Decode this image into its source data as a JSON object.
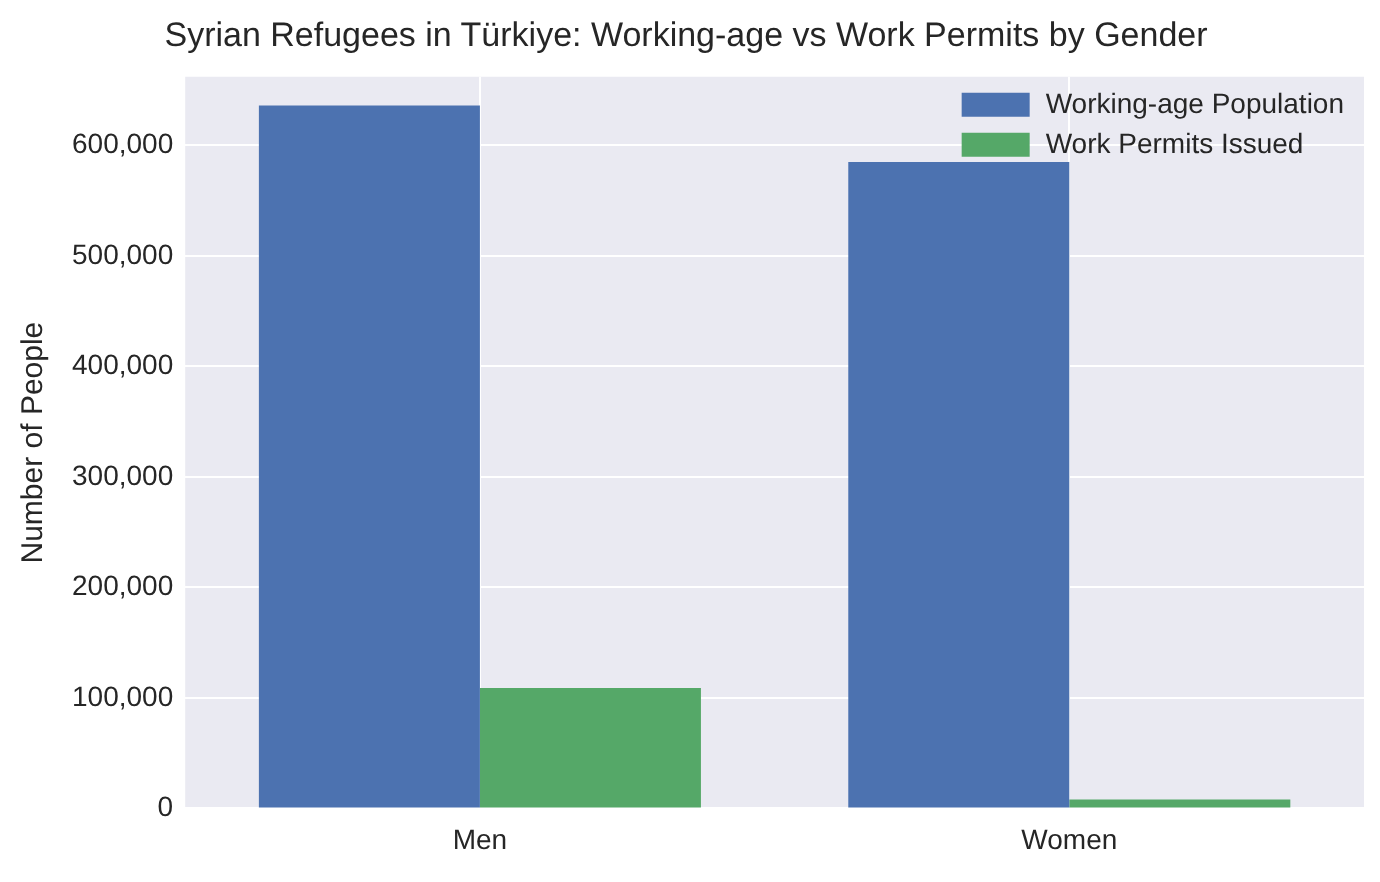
{
  "chart_data": {
    "type": "bar",
    "title": "Syrian Refugees in Türkiye: Working-age vs Work Permits by Gender",
    "ylabel": "Number of People",
    "categories": [
      "Men",
      "Women"
    ],
    "series": [
      {
        "name": "Working-age Population",
        "color": "#4c72b0",
        "values": [
          636000,
          585000
        ]
      },
      {
        "name": "Work Permits Issued",
        "color": "#55a868",
        "values": [
          109000,
          8000
        ]
      }
    ],
    "ylim": [
      0,
      662000
    ],
    "yticks": [
      {
        "value": 0,
        "label": "0"
      },
      {
        "value": 100000,
        "label": "100,000"
      },
      {
        "value": 200000,
        "label": "200,000"
      },
      {
        "value": 300000,
        "label": "300,000"
      },
      {
        "value": 400000,
        "label": "400,000"
      },
      {
        "value": 500000,
        "label": "500,000"
      },
      {
        "value": 600000,
        "label": "600,000"
      }
    ],
    "grid": true,
    "legend": "top right"
  }
}
